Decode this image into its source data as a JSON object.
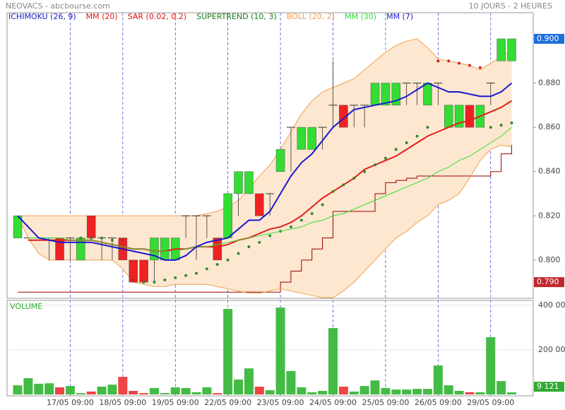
{
  "header": {
    "left": "NEOVACS - abcbourse.com",
    "right": "10 JOURS - 2 HEURES"
  },
  "chart_data": [
    {
      "type": "candlestick",
      "categories": [
        null,
        null,
        null,
        null,
        null,
        "17/05 09:00",
        null,
        null,
        null,
        null,
        "18/05 09:00",
        null,
        null,
        null,
        null,
        "19/05 09:00",
        null,
        null,
        null,
        null,
        "22/05 09:00",
        null,
        null,
        null,
        null,
        "23/05 09:00",
        null,
        null,
        null,
        null,
        "24/05 09:00",
        null,
        null,
        null,
        null,
        "25/05 09:00",
        null,
        null,
        null,
        null,
        "26/05 09:00",
        null,
        null,
        null,
        null,
        "29/05 09:00",
        null,
        null
      ],
      "open": [
        0.81,
        0.81,
        0.81,
        0.81,
        0.81,
        0.81,
        0.8,
        0.82,
        0.81,
        0.81,
        0.81,
        0.8,
        0.8,
        0.8,
        0.8,
        0.8,
        0.82,
        0.82,
        0.82,
        0.81,
        0.81,
        0.83,
        0.83,
        0.83,
        0.83,
        0.84,
        0.86,
        0.85,
        0.85,
        0.86,
        0.87,
        0.87,
        0.87,
        0.87,
        0.87,
        0.87,
        0.87,
        0.88,
        0.88,
        0.87,
        0.88,
        0.86,
        0.86,
        0.87,
        0.86,
        0.88,
        0.89,
        0.89
      ],
      "high": [
        0.82,
        0.81,
        0.81,
        0.81,
        0.81,
        0.81,
        0.81,
        0.82,
        0.81,
        0.81,
        0.81,
        0.8,
        0.8,
        0.81,
        0.81,
        0.81,
        0.82,
        0.82,
        0.82,
        0.81,
        0.83,
        0.84,
        0.84,
        0.83,
        0.83,
        0.85,
        0.86,
        0.86,
        0.86,
        0.86,
        0.89,
        0.87,
        0.87,
        0.87,
        0.88,
        0.88,
        0.88,
        0.88,
        0.88,
        0.88,
        0.88,
        0.87,
        0.87,
        0.87,
        0.87,
        0.88,
        0.9,
        0.9
      ],
      "low": [
        0.81,
        0.81,
        0.81,
        0.8,
        0.8,
        0.8,
        0.8,
        0.81,
        0.8,
        0.8,
        0.8,
        0.79,
        0.79,
        0.79,
        0.8,
        0.8,
        0.81,
        0.8,
        0.81,
        0.8,
        0.81,
        0.82,
        0.83,
        0.82,
        0.82,
        0.84,
        0.84,
        0.85,
        0.85,
        0.85,
        0.86,
        0.86,
        0.86,
        0.86,
        0.87,
        0.87,
        0.87,
        0.87,
        0.87,
        0.87,
        0.87,
        0.86,
        0.86,
        0.86,
        0.86,
        0.87,
        0.89,
        0.89
      ],
      "close": [
        0.82,
        0.81,
        0.81,
        0.81,
        0.8,
        0.81,
        0.81,
        0.81,
        0.81,
        0.81,
        0.8,
        0.79,
        0.79,
        0.81,
        0.81,
        0.81,
        0.82,
        0.82,
        0.82,
        0.8,
        0.83,
        0.84,
        0.84,
        0.82,
        0.83,
        0.85,
        0.86,
        0.86,
        0.86,
        0.86,
        0.87,
        0.86,
        0.87,
        0.87,
        0.88,
        0.88,
        0.88,
        0.88,
        0.88,
        0.88,
        0.88,
        0.87,
        0.87,
        0.86,
        0.87,
        0.88,
        0.9,
        0.9
      ],
      "up_color": "#33dd33",
      "down_color": "#ee2222",
      "series": [
        {
          "name": "ICHIMOKU (26, 9)",
          "color": "#1a1acc"
        },
        {
          "name": "MM (20)",
          "color": "#e0201b",
          "kind": "line",
          "values": [
            null,
            0.809,
            0.809,
            0.809,
            0.809,
            0.809,
            0.809,
            0.809,
            0.808,
            0.807,
            0.806,
            0.805,
            0.805,
            0.804,
            0.804,
            0.805,
            0.805,
            0.806,
            0.806,
            0.806,
            0.807,
            0.809,
            0.81,
            0.812,
            0.814,
            0.815,
            0.817,
            0.82,
            0.824,
            0.828,
            0.831,
            0.834,
            0.837,
            0.841,
            0.843,
            0.845,
            0.847,
            0.85,
            0.853,
            0.856,
            0.858,
            0.86,
            0.862,
            0.863,
            0.865,
            0.867,
            0.869,
            0.872
          ]
        },
        {
          "name": "SAR (0.02, 0.2)",
          "color": "#dd1111",
          "kind": "dots",
          "up_color": "#2e8b2e",
          "down_color": "#cc2222",
          "values": [
            null,
            null,
            null,
            null,
            null,
            null,
            0.81,
            0.81,
            0.81,
            0.809,
            0.809,
            0.791,
            0.79,
            0.79,
            0.791,
            0.792,
            0.793,
            0.794,
            0.796,
            0.798,
            0.8,
            0.803,
            0.806,
            0.808,
            0.811,
            0.813,
            0.815,
            0.818,
            0.821,
            0.825,
            0.831,
            0.834,
            0.837,
            0.84,
            0.843,
            0.846,
            0.85,
            0.853,
            0.856,
            0.86,
            0.89,
            0.89,
            0.889,
            0.888,
            0.887,
            0.86,
            0.861,
            0.862
          ]
        },
        {
          "name": "SUPERTREND (10, 3)",
          "color": "#1a7a1a",
          "kind": "step",
          "line_color": "#990000",
          "values": [
            0.7855,
            0.7855,
            0.7855,
            0.7855,
            0.7855,
            0.7855,
            0.7855,
            0.7855,
            0.7855,
            0.7855,
            0.7855,
            0.7855,
            0.7855,
            0.7855,
            0.7855,
            0.7855,
            0.7855,
            0.7855,
            0.7855,
            0.7855,
            0.7855,
            0.7855,
            0.7855,
            0.7855,
            0.7855,
            0.79,
            0.795,
            0.8,
            0.805,
            0.81,
            0.822,
            0.822,
            0.822,
            0.822,
            0.83,
            0.835,
            0.836,
            0.837,
            0.838,
            0.838,
            0.838,
            0.838,
            0.838,
            0.838,
            0.838,
            0.84,
            0.848,
            0.852
          ]
        },
        {
          "name": "BOLL (20, 2)",
          "color": "#f0a050",
          "kind": "band",
          "fill": "#fde7d0",
          "upper": [
            0.82,
            0.82,
            0.82,
            0.82,
            0.82,
            0.82,
            0.82,
            0.82,
            0.82,
            0.82,
            0.82,
            0.82,
            0.82,
            0.82,
            0.82,
            0.82,
            0.82,
            0.82,
            0.821,
            0.822,
            0.824,
            0.827,
            0.832,
            0.838,
            0.843,
            0.85,
            0.858,
            0.866,
            0.872,
            0.876,
            0.878,
            0.88,
            0.882,
            0.886,
            0.89,
            0.894,
            0.897,
            0.899,
            0.9,
            0.896,
            0.891,
            0.89,
            0.889,
            0.888,
            0.886,
            0.889,
            0.892,
            0.895
          ],
          "lower": [
            0.82,
            0.81,
            0.803,
            0.8,
            0.8,
            0.8,
            0.8,
            0.8,
            0.8,
            0.8,
            0.796,
            0.79,
            0.789,
            0.788,
            0.788,
            0.789,
            0.789,
            0.789,
            0.789,
            0.788,
            0.787,
            0.786,
            0.785,
            0.785,
            0.786,
            0.787,
            0.786,
            0.785,
            0.784,
            0.783,
            0.783,
            0.786,
            0.79,
            0.795,
            0.8,
            0.805,
            0.81,
            0.813,
            0.817,
            0.82,
            0.825,
            0.827,
            0.83,
            0.837,
            0.845,
            0.85,
            0.852,
            0.851
          ]
        },
        {
          "name": "MM (30)",
          "color": "#33dd33",
          "kind": "line",
          "values": [
            null,
            0.81,
            0.81,
            0.81,
            0.81,
            0.809,
            0.809,
            0.809,
            0.808,
            0.807,
            0.806,
            0.805,
            0.805,
            0.804,
            0.804,
            0.804,
            0.805,
            0.806,
            0.806,
            0.807,
            0.808,
            0.809,
            0.81,
            0.811,
            0.812,
            0.813,
            0.814,
            0.815,
            0.817,
            0.818,
            0.82,
            0.821,
            0.823,
            0.825,
            0.827,
            0.829,
            0.831,
            0.833,
            0.835,
            0.837,
            0.84,
            0.842,
            0.845,
            0.847,
            0.85,
            0.853,
            0.856,
            0.86
          ]
        },
        {
          "name": "MM (7)",
          "color": "#1a1acc",
          "kind": "line",
          "values": [
            0.82,
            0.815,
            0.81,
            0.809,
            0.808,
            0.808,
            0.808,
            0.808,
            0.807,
            0.806,
            0.805,
            0.804,
            0.803,
            0.802,
            0.8,
            0.8,
            0.802,
            0.806,
            0.808,
            0.809,
            0.81,
            0.814,
            0.818,
            0.818,
            0.822,
            0.83,
            0.838,
            0.844,
            0.848,
            0.854,
            0.86,
            0.864,
            0.868,
            0.869,
            0.87,
            0.871,
            0.872,
            0.874,
            0.877,
            0.88,
            0.878,
            0.876,
            0.876,
            0.875,
            0.874,
            0.874,
            0.876,
            0.88
          ]
        }
      ],
      "ylim": [
        0.7827,
        0.9118
      ],
      "yticks": [
        {
          "value": 0.8,
          "label": "0.800"
        },
        {
          "value": 0.82,
          "label": "0.820"
        },
        {
          "value": 0.84,
          "label": "0.840"
        },
        {
          "value": 0.86,
          "label": "0.860"
        },
        {
          "value": 0.88,
          "label": "0.880"
        },
        {
          "value": 0.9,
          "label": "0.900"
        }
      ],
      "price_tags": [
        {
          "value": 0.9,
          "label": "0.900",
          "color": "#1e6fd9"
        },
        {
          "value": 0.79,
          "label": "0.790",
          "color": "#c0282d"
        }
      ]
    },
    {
      "type": "volume",
      "title": "VOLUME",
      "color": "#44bb44",
      "down_color": "#ee4444",
      "values": [
        41000,
        73000,
        48000,
        50000,
        32000,
        38000,
        6000,
        13000,
        35000,
        44000,
        79000,
        16000,
        6000,
        29000,
        6000,
        32000,
        29000,
        10000,
        32000,
        6000,
        384000,
        67000,
        117000,
        35000,
        19000,
        390000,
        105000,
        32000,
        10000,
        16000,
        298000,
        35000,
        13000,
        38000,
        63000,
        29000,
        22000,
        22000,
        25000,
        25000,
        130000,
        41000,
        16000,
        10000,
        10000,
        257000,
        60000,
        9121
      ],
      "ylim": [
        0,
        422000
      ],
      "yticks": [
        {
          "value": 200000,
          "label": "200 000"
        },
        {
          "value": 400000,
          "label": "400 000"
        }
      ],
      "tag": {
        "value": 9121,
        "label": "9 121",
        "color": "#33aa33"
      }
    }
  ]
}
